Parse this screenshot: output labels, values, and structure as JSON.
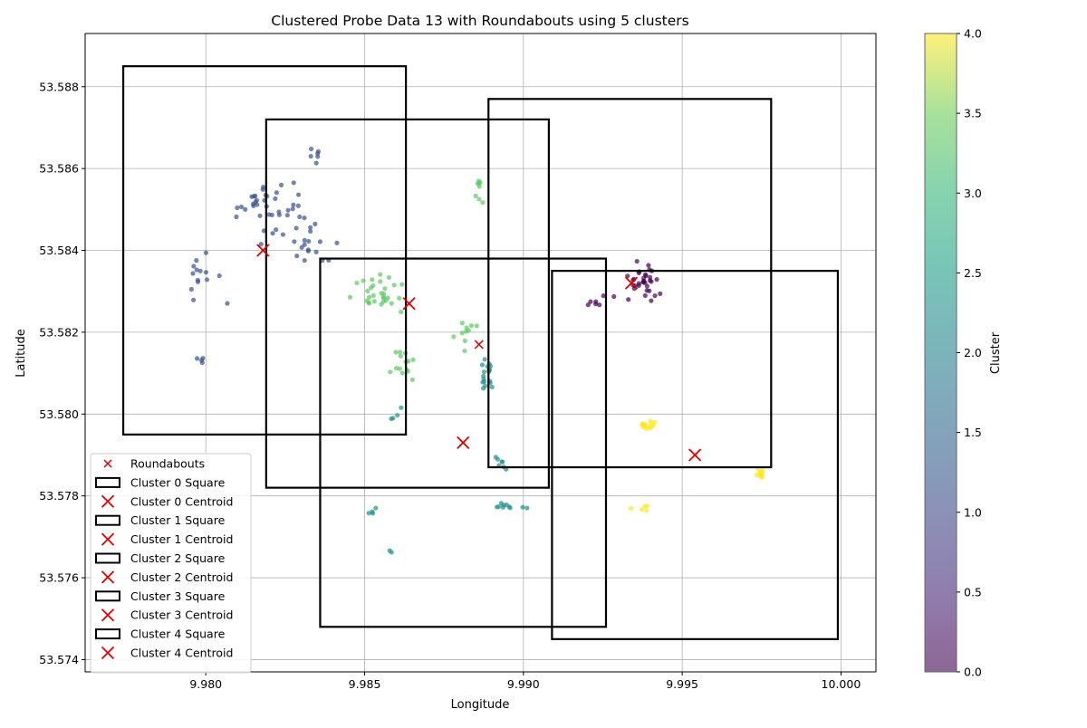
{
  "chart_data": {
    "type": "scatter",
    "title": "Clustered Probe Data 13 with Roundabouts using 5 clusters",
    "xlabel": "Longitude",
    "ylabel": "Latitude",
    "xlim": [
      9.9762,
      10.0011
    ],
    "ylim": [
      53.5737,
      53.5893
    ],
    "grid": true,
    "legend_position": "lower-left",
    "x_ticks": [
      "9.980",
      "9.985",
      "9.990",
      "9.995",
      "10.000"
    ],
    "x_tick_values": [
      9.98,
      9.985,
      9.99,
      9.995,
      10.0
    ],
    "y_ticks": [
      "53.574",
      "53.576",
      "53.578",
      "53.580",
      "53.582",
      "53.584",
      "53.586",
      "53.588"
    ],
    "y_tick_values": [
      53.574,
      53.576,
      53.578,
      53.58,
      53.582,
      53.584,
      53.586,
      53.588
    ],
    "colorbar": {
      "label": "Cluster",
      "range": [
        0.0,
        4.0
      ],
      "colormap": "viridis",
      "ticks": [
        "0.0",
        "0.5",
        "1.0",
        "1.5",
        "2.0",
        "2.5",
        "3.0",
        "3.5",
        "4.0"
      ],
      "tick_values": [
        0.0,
        0.5,
        1.0,
        1.5,
        2.0,
        2.5,
        3.0,
        3.5,
        4.0
      ]
    },
    "cluster_colors": [
      "#440154",
      "#3b528b",
      "#21918c",
      "#5ec962",
      "#fde725"
    ],
    "marker_color": "#e00000",
    "roundabouts": [
      {
        "x": 9.9886,
        "y": 53.5817
      }
    ],
    "centroids": [
      {
        "cluster": 0,
        "x": 9.9934,
        "y": 53.5832
      },
      {
        "cluster": 1,
        "x": 9.9818,
        "y": 53.584
      },
      {
        "cluster": 2,
        "x": 9.9881,
        "y": 53.5793
      },
      {
        "cluster": 3,
        "x": 9.9864,
        "y": 53.5827
      },
      {
        "cluster": 4,
        "x": 9.9954,
        "y": 53.579
      }
    ],
    "squares": [
      {
        "cluster": 0,
        "x0": 9.9889,
        "x1": 9.9978,
        "y0": 53.5787,
        "y1": 53.5877
      },
      {
        "cluster": 1,
        "x0": 9.9774,
        "x1": 9.9863,
        "y0": 53.5795,
        "y1": 53.5885
      },
      {
        "cluster": 2,
        "x0": 9.9836,
        "x1": 9.9926,
        "y0": 53.5748,
        "y1": 53.5838
      },
      {
        "cluster": 3,
        "x0": 9.9819,
        "x1": 9.9908,
        "y0": 53.5782,
        "y1": 53.5872
      },
      {
        "cluster": 4,
        "x0": 9.9909,
        "x1": 9.9999,
        "y0": 53.5745,
        "y1": 53.5835
      }
    ],
    "point_groups": [
      {
        "cluster": 0,
        "cx": 9.9937,
        "cy": 53.5832,
        "sx": 0.0004,
        "sy": 0.0003,
        "n": 34
      },
      {
        "cluster": 0,
        "cx": 9.9923,
        "cy": 53.5828,
        "sx": 0.0003,
        "sy": 0.0002,
        "n": 6
      },
      {
        "cluster": 1,
        "cx": 9.982,
        "cy": 53.585,
        "sx": 0.0007,
        "sy": 0.0006,
        "n": 40
      },
      {
        "cluster": 1,
        "cx": 9.98,
        "cy": 53.5832,
        "sx": 0.0004,
        "sy": 0.0004,
        "n": 14
      },
      {
        "cluster": 1,
        "cx": 9.9832,
        "cy": 53.5842,
        "sx": 0.0006,
        "sy": 0.0004,
        "n": 18
      },
      {
        "cluster": 1,
        "cx": 9.9834,
        "cy": 53.5863,
        "sx": 0.0002,
        "sy": 0.0002,
        "n": 6
      },
      {
        "cluster": 1,
        "cx": 9.9798,
        "cy": 53.5813,
        "sx": 0.0001,
        "sy": 0.0001,
        "n": 4
      },
      {
        "cluster": 2,
        "cx": 9.9888,
        "cy": 53.581,
        "sx": 0.0002,
        "sy": 0.0004,
        "n": 18
      },
      {
        "cluster": 2,
        "cx": 9.9893,
        "cy": 53.5788,
        "sx": 0.0003,
        "sy": 0.0002,
        "n": 7
      },
      {
        "cluster": 2,
        "cx": 9.9895,
        "cy": 53.5777,
        "sx": 0.0004,
        "sy": 0.0001,
        "n": 10
      },
      {
        "cluster": 2,
        "cx": 9.9852,
        "cy": 53.5776,
        "sx": 0.0001,
        "sy": 0.0001,
        "n": 4
      },
      {
        "cluster": 2,
        "cx": 9.986,
        "cy": 53.58,
        "sx": 0.0002,
        "sy": 0.0001,
        "n": 4
      },
      {
        "cluster": 2,
        "cx": 9.9858,
        "cy": 53.5766,
        "sx": 5e-05,
        "sy": 5e-05,
        "n": 2
      },
      {
        "cluster": 3,
        "cx": 9.9855,
        "cy": 53.583,
        "sx": 0.0007,
        "sy": 0.0004,
        "n": 30
      },
      {
        "cluster": 3,
        "cx": 9.9862,
        "cy": 53.5812,
        "sx": 0.0003,
        "sy": 0.0003,
        "n": 14
      },
      {
        "cluster": 3,
        "cx": 9.9882,
        "cy": 53.582,
        "sx": 0.0003,
        "sy": 0.0003,
        "n": 10
      },
      {
        "cluster": 3,
        "cx": 9.9886,
        "cy": 53.5855,
        "sx": 0.0001,
        "sy": 0.0002,
        "n": 8
      },
      {
        "cluster": 4,
        "cx": 9.9939,
        "cy": 53.5797,
        "sx": 0.0002,
        "sy": 0.0001,
        "n": 14
      },
      {
        "cluster": 4,
        "cx": 9.9975,
        "cy": 53.5785,
        "sx": 0.0001,
        "sy": 0.0001,
        "n": 12
      },
      {
        "cluster": 4,
        "cx": 9.9937,
        "cy": 53.5777,
        "sx": 0.0002,
        "sy": 5e-05,
        "n": 5
      }
    ],
    "legend": [
      {
        "kind": "roundabout",
        "label": "Roundabouts"
      },
      {
        "kind": "square",
        "label": "Cluster 0 Square"
      },
      {
        "kind": "centroid",
        "label": "Cluster 0 Centroid"
      },
      {
        "kind": "square",
        "label": "Cluster 1 Square"
      },
      {
        "kind": "centroid",
        "label": "Cluster 1 Centroid"
      },
      {
        "kind": "square",
        "label": "Cluster 2 Square"
      },
      {
        "kind": "centroid",
        "label": "Cluster 2 Centroid"
      },
      {
        "kind": "square",
        "label": "Cluster 3 Square"
      },
      {
        "kind": "centroid",
        "label": "Cluster 3 Centroid"
      },
      {
        "kind": "square",
        "label": "Cluster 4 Square"
      },
      {
        "kind": "centroid",
        "label": "Cluster 4 Centroid"
      }
    ]
  }
}
